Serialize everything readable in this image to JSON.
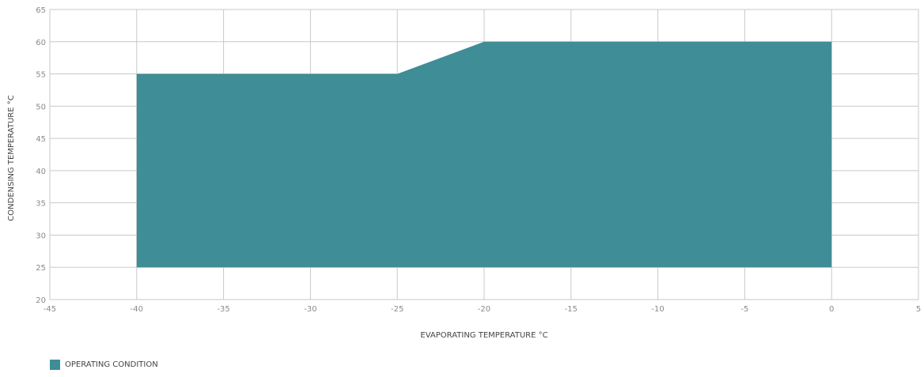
{
  "chart_data": {
    "type": "area",
    "xlabel": "EVAPORATING TEMPERATURE °C",
    "ylabel": "CONDENSING TEMPERATURE °C",
    "xlim": [
      -45,
      5
    ],
    "ylim": [
      20,
      65
    ],
    "x_ticks": [
      -45,
      -40,
      -35,
      -30,
      -25,
      -20,
      -15,
      -10,
      -5,
      0,
      5
    ],
    "y_ticks": [
      20,
      25,
      30,
      35,
      40,
      45,
      50,
      55,
      60,
      65
    ],
    "grid": true,
    "legend_position": "bottom-left",
    "series": [
      {
        "name": "OPERATING CONDITION",
        "color": "#3f8d96",
        "polygon": [
          {
            "x": -40,
            "y": 25
          },
          {
            "x": -40,
            "y": 55
          },
          {
            "x": -25,
            "y": 55
          },
          {
            "x": -20,
            "y": 60
          },
          {
            "x": 0,
            "y": 60
          },
          {
            "x": 0,
            "y": 25
          }
        ]
      }
    ]
  }
}
